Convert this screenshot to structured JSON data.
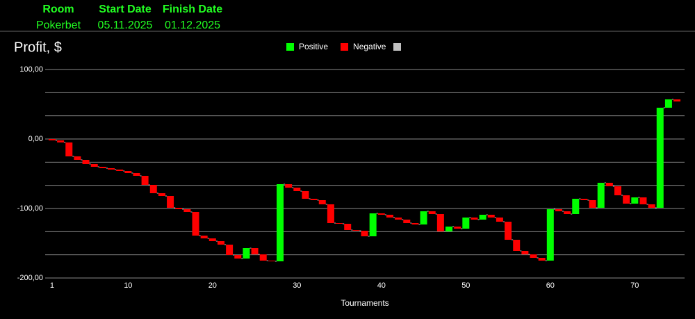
{
  "header": {
    "columns": [
      {
        "label": "Room",
        "value": "Pokerbet"
      },
      {
        "label": "Start Date",
        "value": "05.11.2025"
      },
      {
        "label": "Finish Date",
        "value": "01.12.2025"
      }
    ]
  },
  "chart_data": {
    "type": "waterfall",
    "title": "Profit, $",
    "x_label": "Tournaments",
    "legend": [
      {
        "name": "Positive",
        "color": "#00ff00"
      },
      {
        "name": "Negative",
        "color": "#ff0000"
      }
    ],
    "x": [
      1,
      2,
      3,
      4,
      5,
      6,
      7,
      8,
      9,
      10,
      11,
      12,
      13,
      14,
      15,
      16,
      17,
      18,
      19,
      20,
      21,
      22,
      23,
      24,
      25,
      26,
      27,
      28,
      29,
      30,
      31,
      32,
      33,
      34,
      35,
      36,
      37,
      38,
      39,
      40,
      41,
      42,
      43,
      44,
      45,
      46,
      47,
      48,
      49,
      50,
      51,
      52,
      53,
      54,
      55,
      56,
      57,
      58,
      59,
      60,
      61,
      62,
      63,
      64,
      65,
      66,
      67,
      68,
      69,
      70,
      71,
      72,
      73,
      74,
      75
    ],
    "values": [
      -2,
      -3,
      -20,
      -5,
      -6,
      -4,
      -2,
      -2,
      -2,
      -3,
      -4,
      -13,
      -12,
      -4,
      -17,
      -2,
      -4,
      -34,
      -4,
      -4,
      -5,
      -15,
      -5,
      15,
      -9,
      -9,
      -1,
      111,
      -5,
      -5,
      -11,
      -2,
      -6,
      -27,
      -1,
      -9,
      -1,
      -8,
      33,
      -2,
      -4,
      -3,
      -5,
      -2,
      19,
      -4,
      -25,
      7,
      -3,
      16,
      -3,
      7,
      -4,
      -6,
      -26,
      -16,
      -5,
      -5,
      -4,
      74,
      -3,
      -4,
      22,
      -2,
      -11,
      36,
      -5,
      -13,
      -12,
      9,
      -10,
      -5,
      144,
      12,
      -3
    ],
    "xlim": [
      0.18,
      75.9
    ],
    "xticks": [
      1,
      10,
      20,
      30,
      40,
      50,
      60,
      70
    ],
    "ylim": [
      -200,
      100
    ],
    "yticks": [
      {
        "value": 100,
        "label": "100,00"
      },
      {
        "value": 0,
        "label": "0,00"
      },
      {
        "value": -100,
        "label": "-100,00"
      },
      {
        "value": -200,
        "label": "-200,00"
      }
    ],
    "minor_yticks": [
      66.67,
      33.33,
      -33.33,
      -66.67,
      -133.33,
      -166.67
    ],
    "grid": true
  }
}
